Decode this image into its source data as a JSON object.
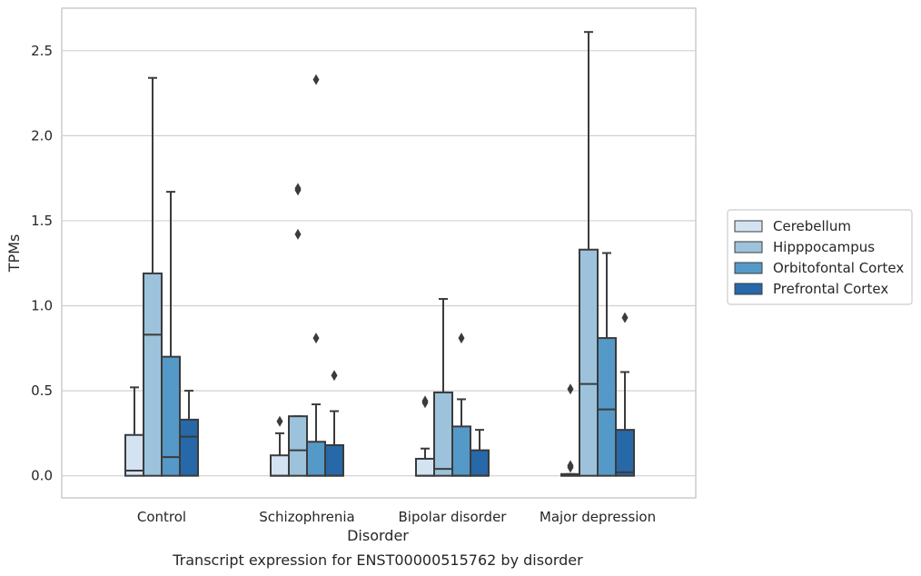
{
  "chart_data": {
    "type": "boxplot",
    "title": "",
    "caption": "Transcript expression for ENST00000515762 by disorder",
    "xlabel": "Disorder",
    "ylabel": "TPMs",
    "ylim": [
      -0.13,
      2.75
    ],
    "yticks": [
      0.0,
      0.5,
      1.0,
      1.5,
      2.0,
      2.5
    ],
    "ytick_labels": [
      "0.0",
      "0.5",
      "1.0",
      "1.5",
      "2.0",
      "2.5"
    ],
    "grid": "horizontal",
    "legend_position": "right",
    "categories": [
      "Control",
      "Schizophrenia",
      "Bipolar disorder",
      "Major depression"
    ],
    "series": [
      {
        "name": "Cerebellum",
        "color": "#d4e3f2",
        "boxes": [
          {
            "whislo": 0.0,
            "q1": 0.0,
            "med": 0.03,
            "q3": 0.24,
            "whishi": 0.52,
            "fliers": []
          },
          {
            "whislo": 0.0,
            "q1": 0.0,
            "med": 0.0,
            "q3": 0.12,
            "whishi": 0.25,
            "fliers": [
              0.32
            ]
          },
          {
            "whislo": 0.0,
            "q1": 0.0,
            "med": 0.0,
            "q3": 0.1,
            "whishi": 0.16,
            "fliers": [
              0.43,
              0.44
            ]
          },
          {
            "whislo": 0.0,
            "q1": 0.0,
            "med": 0.0,
            "q3": 0.01,
            "whishi": 0.01,
            "fliers": [
              0.05,
              0.06,
              0.51
            ]
          }
        ]
      },
      {
        "name": "Hipppocampus",
        "color": "#9cc3db",
        "boxes": [
          {
            "whislo": 0.0,
            "q1": 0.0,
            "med": 0.83,
            "q3": 1.19,
            "whishi": 2.34,
            "fliers": []
          },
          {
            "whislo": 0.0,
            "q1": 0.0,
            "med": 0.15,
            "q3": 0.35,
            "whishi": 0.35,
            "fliers": [
              1.42,
              1.68,
              1.69
            ]
          },
          {
            "whislo": 0.0,
            "q1": 0.0,
            "med": 0.04,
            "q3": 0.49,
            "whishi": 1.04,
            "fliers": []
          },
          {
            "whislo": 0.0,
            "q1": 0.0,
            "med": 0.54,
            "q3": 1.33,
            "whishi": 2.61,
            "fliers": []
          }
        ]
      },
      {
        "name": "Orbitofontal Cortex",
        "color": "#5599c8",
        "boxes": [
          {
            "whislo": 0.0,
            "q1": 0.0,
            "med": 0.11,
            "q3": 0.7,
            "whishi": 1.67,
            "fliers": []
          },
          {
            "whislo": 0.0,
            "q1": 0.0,
            "med": 0.0,
            "q3": 0.2,
            "whishi": 0.42,
            "fliers": [
              0.81,
              2.33
            ]
          },
          {
            "whislo": 0.0,
            "q1": 0.0,
            "med": 0.0,
            "q3": 0.29,
            "whishi": 0.45,
            "fliers": [
              0.81
            ]
          },
          {
            "whislo": 0.0,
            "q1": 0.0,
            "med": 0.39,
            "q3": 0.81,
            "whishi": 1.31,
            "fliers": []
          }
        ]
      },
      {
        "name": "Prefrontal Cortex",
        "color": "#2668a8",
        "boxes": [
          {
            "whislo": 0.0,
            "q1": 0.0,
            "med": 0.23,
            "q3": 0.33,
            "whishi": 0.5,
            "fliers": []
          },
          {
            "whislo": 0.0,
            "q1": 0.0,
            "med": 0.0,
            "q3": 0.18,
            "whishi": 0.38,
            "fliers": [
              0.59
            ]
          },
          {
            "whislo": 0.0,
            "q1": 0.0,
            "med": 0.0,
            "q3": 0.15,
            "whishi": 0.27,
            "fliers": []
          },
          {
            "whislo": 0.0,
            "q1": 0.0,
            "med": 0.02,
            "q3": 0.27,
            "whishi": 0.61,
            "fliers": [
              0.93
            ]
          }
        ]
      }
    ]
  }
}
